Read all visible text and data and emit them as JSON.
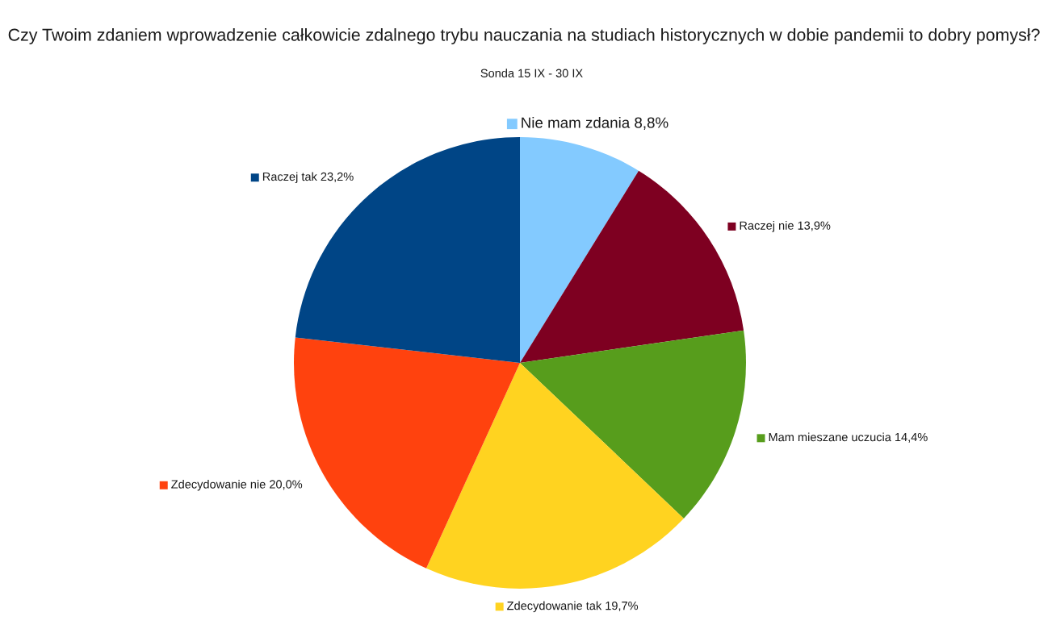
{
  "chart_data": {
    "type": "pie",
    "title": "Czy Twoim zdaniem wprowadzenie całkowicie zdalnego trybu nauczania na studiach historycznych w dobie pandemii to dobry pomysł?",
    "subtitle": "Sonda 15 IX - 30 IX",
    "categories": [
      "Nie mam zdania",
      "Raczej nie",
      "Mam mieszane uczucia",
      "Zdecydowanie tak",
      "Zdecydowanie nie",
      "Raczej tak"
    ],
    "values": [
      8.8,
      13.9,
      14.4,
      19.7,
      20.0,
      23.2
    ],
    "value_labels": [
      "8,8%",
      "13,9%",
      "14,4%",
      "19,7%",
      "20,0%",
      "23,2%"
    ],
    "colors": [
      "#83caff",
      "#7e0021",
      "#579d1c",
      "#ffd320",
      "#ff420e",
      "#004586"
    ],
    "legend": true
  }
}
